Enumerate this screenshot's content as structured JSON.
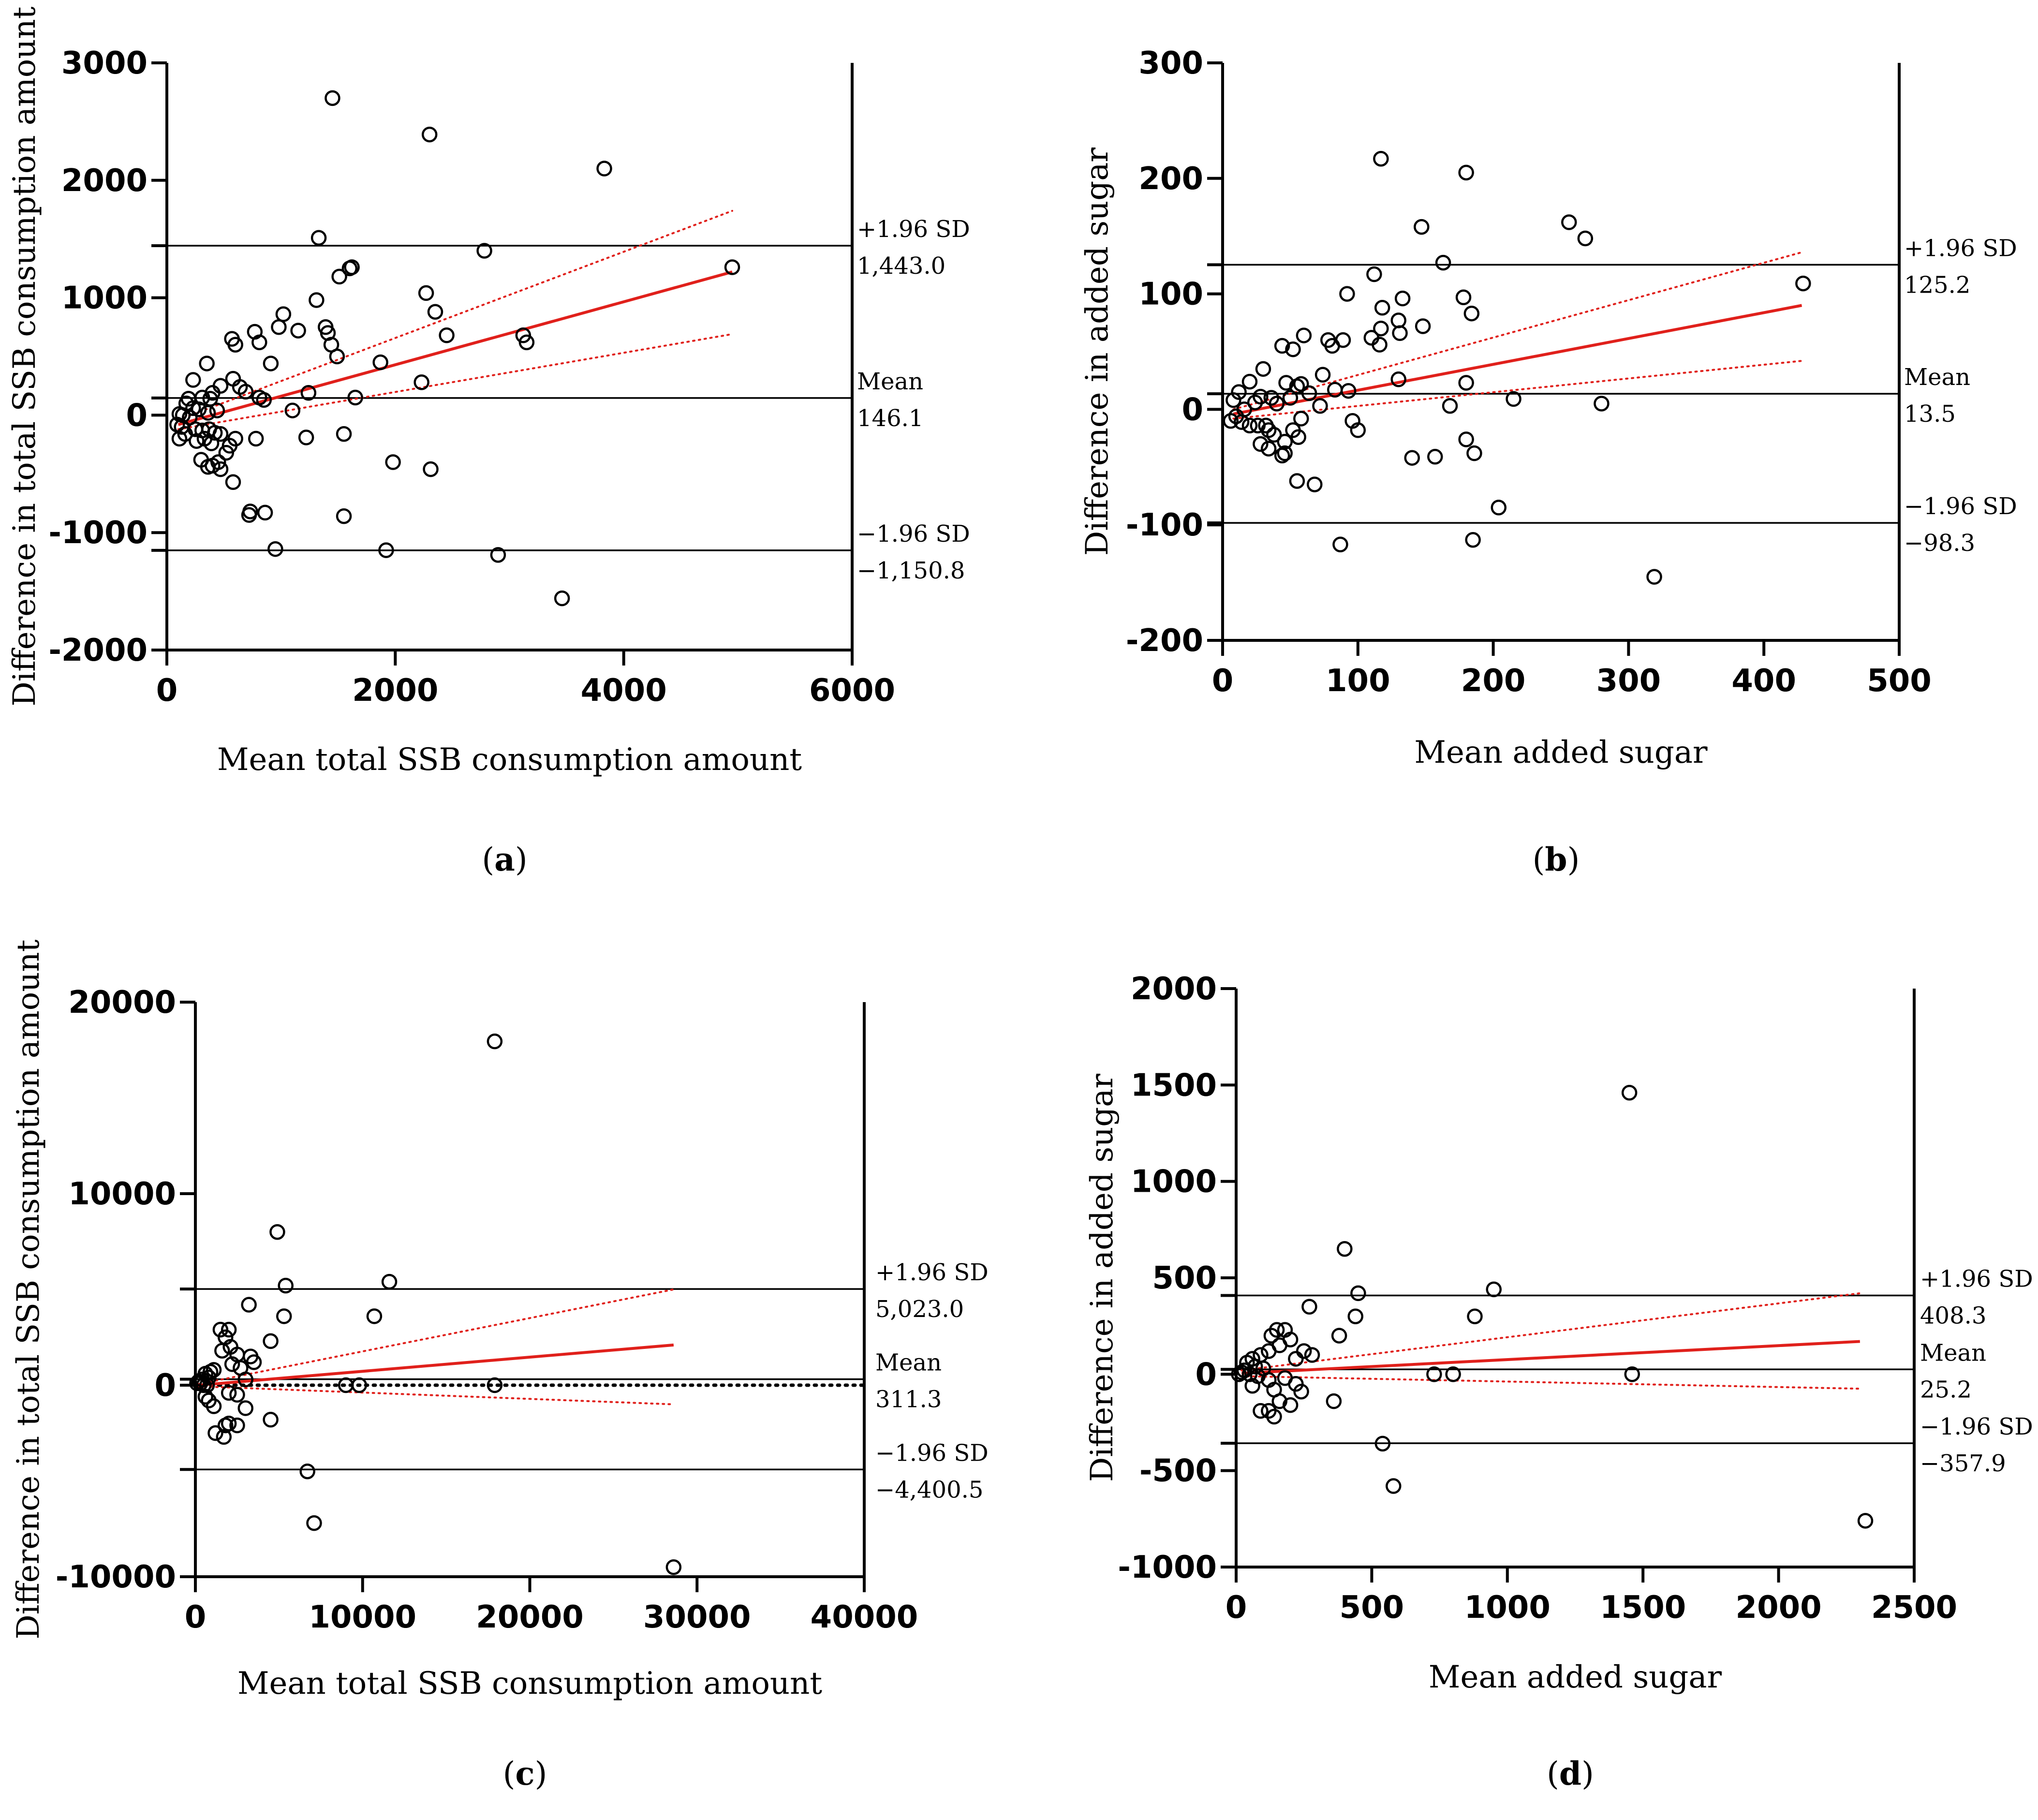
{
  "figure_caption_labels": [
    "(a)",
    "(b)",
    "(c)",
    "(d)"
  ],
  "chart_data": [
    {
      "type": "scatter",
      "panel": "a",
      "label_open": "(",
      "label_letter": "a",
      "label_close": ")",
      "xlabel": "Mean total SSB consumption amount",
      "ylabel": "Difference in total SSB consumption amount",
      "xlim": [
        0,
        6000
      ],
      "ylim": [
        -2000,
        3000
      ],
      "xticks": [
        0,
        2000,
        4000,
        6000
      ],
      "yticks": [
        -2000,
        -1000,
        0,
        1000,
        2000,
        3000
      ],
      "ytick_labels": [
        "-2000",
        "-1000",
        "0",
        "1000",
        "2000",
        "3000"
      ],
      "lines": {
        "upper": 1443.0,
        "mean": 146.1,
        "lower": -1150.8
      },
      "line_labels": {
        "upper_name": "+1.96 SD",
        "upper_value": "1,443.0",
        "mean_name": "Mean",
        "mean_value": "146.1",
        "lower_name": "−1.96 SD",
        "lower_value": "−1,150.8"
      },
      "regression": {
        "x0": 100,
        "y0": -80,
        "x1": 4950,
        "y1": 1220
      },
      "ci_upper": {
        "x0": 100,
        "y0": -40,
        "x1": 4950,
        "y1": 1740
      },
      "ci_lower": {
        "x0": 100,
        "y0": -120,
        "x1": 4950,
        "y1": 690
      },
      "points": [
        [
          1450,
          2700
        ],
        [
          2300,
          2390
        ],
        [
          3830,
          2100
        ],
        [
          1330,
          1510
        ],
        [
          2780,
          1400
        ],
        [
          1620,
          1260
        ],
        [
          1600,
          1250
        ],
        [
          4950,
          1260
        ],
        [
          1510,
          1180
        ],
        [
          2270,
          1040
        ],
        [
          1310,
          980
        ],
        [
          2350,
          880
        ],
        [
          1020,
          860
        ],
        [
          980,
          750
        ],
        [
          1390,
          750
        ],
        [
          1410,
          700
        ],
        [
          1150,
          720
        ],
        [
          770,
          710
        ],
        [
          2450,
          680
        ],
        [
          3120,
          680
        ],
        [
          3150,
          620
        ],
        [
          570,
          650
        ],
        [
          600,
          600
        ],
        [
          1440,
          600
        ],
        [
          810,
          620
        ],
        [
          1490,
          500
        ],
        [
          350,
          440
        ],
        [
          910,
          440
        ],
        [
          1870,
          450
        ],
        [
          2230,
          280
        ],
        [
          580,
          310
        ],
        [
          230,
          300
        ],
        [
          640,
          240
        ],
        [
          470,
          250
        ],
        [
          690,
          200
        ],
        [
          1240,
          190
        ],
        [
          400,
          190
        ],
        [
          1650,
          150
        ],
        [
          380,
          140
        ],
        [
          810,
          150
        ],
        [
          850,
          130
        ],
        [
          310,
          150
        ],
        [
          190,
          140
        ],
        [
          170,
          100
        ],
        [
          230,
          60
        ],
        [
          280,
          50
        ],
        [
          440,
          40
        ],
        [
          1100,
          40
        ],
        [
          360,
          20
        ],
        [
          110,
          10
        ],
        [
          140,
          0
        ],
        [
          200,
          -20
        ],
        [
          90,
          -80
        ],
        [
          130,
          -100
        ],
        [
          250,
          -120
        ],
        [
          310,
          -130
        ],
        [
          370,
          -120
        ],
        [
          420,
          -150
        ],
        [
          470,
          -160
        ],
        [
          600,
          -200
        ],
        [
          780,
          -200
        ],
        [
          1220,
          -190
        ],
        [
          1550,
          -160
        ],
        [
          110,
          -200
        ],
        [
          160,
          -160
        ],
        [
          330,
          -200
        ],
        [
          260,
          -220
        ],
        [
          390,
          -240
        ],
        [
          550,
          -260
        ],
        [
          520,
          -320
        ],
        [
          300,
          -380
        ],
        [
          450,
          -400
        ],
        [
          400,
          -430
        ],
        [
          360,
          -440
        ],
        [
          470,
          -460
        ],
        [
          1980,
          -400
        ],
        [
          2310,
          -460
        ],
        [
          580,
          -570
        ],
        [
          730,
          -820
        ],
        [
          720,
          -850
        ],
        [
          860,
          -830
        ],
        [
          1550,
          -860
        ],
        [
          950,
          -1140
        ],
        [
          1920,
          -1150
        ],
        [
          2900,
          -1190
        ],
        [
          3460,
          -1560
        ]
      ]
    },
    {
      "type": "scatter",
      "panel": "b",
      "label_open": "(",
      "label_letter": "b",
      "label_close": ")",
      "xlabel": "Mean added sugar",
      "ylabel": "Difference in added sugar",
      "xlim": [
        0,
        500
      ],
      "ylim": [
        -200,
        300
      ],
      "xticks": [
        0,
        100,
        200,
        300,
        400,
        500
      ],
      "yticks": [
        -200,
        -100,
        0,
        100,
        200,
        300
      ],
      "ytick_labels": [
        "-200",
        "-100",
        "0",
        "100",
        "200",
        "300"
      ],
      "lines": {
        "upper": 125.2,
        "mean": 13.5,
        "lower": -98.3
      },
      "line_labels": {
        "upper_name": "+1.96 SD",
        "upper_value": "125.2",
        "mean_name": "Mean",
        "mean_value": "13.5",
        "lower_name": "−1.96 SD",
        "lower_value": "−98.3"
      },
      "regression": {
        "x0": 8,
        "y0": -4,
        "x1": 428,
        "y1": 90
      },
      "ci_upper": {
        "x0": 8,
        "y0": 0,
        "x1": 428,
        "y1": 136
      },
      "ci_lower": {
        "x0": 8,
        "y0": -8,
        "x1": 428,
        "y1": 42
      },
      "points": [
        [
          117,
          217
        ],
        [
          180,
          205
        ],
        [
          147,
          158
        ],
        [
          256,
          162
        ],
        [
          268,
          148
        ],
        [
          163,
          127
        ],
        [
          112,
          117
        ],
        [
          429,
          109
        ],
        [
          92,
          100
        ],
        [
          133,
          96
        ],
        [
          178,
          97
        ],
        [
          118,
          88
        ],
        [
          184,
          83
        ],
        [
          117,
          70
        ],
        [
          130,
          77
        ],
        [
          148,
          72
        ],
        [
          116,
          56
        ],
        [
          60,
          64
        ],
        [
          131,
          66
        ],
        [
          78,
          60
        ],
        [
          81,
          55
        ],
        [
          89,
          60
        ],
        [
          44,
          55
        ],
        [
          52,
          52
        ],
        [
          110,
          62
        ],
        [
          30,
          35
        ],
        [
          74,
          30
        ],
        [
          130,
          26
        ],
        [
          180,
          23
        ],
        [
          47,
          23
        ],
        [
          55,
          20
        ],
        [
          83,
          17
        ],
        [
          93,
          16
        ],
        [
          58,
          22
        ],
        [
          20,
          24
        ],
        [
          12,
          15
        ],
        [
          8,
          8
        ],
        [
          24,
          6
        ],
        [
          28,
          11
        ],
        [
          36,
          10
        ],
        [
          40,
          5
        ],
        [
          50,
          10
        ],
        [
          168,
          3
        ],
        [
          215,
          9
        ],
        [
          280,
          5
        ],
        [
          64,
          14
        ],
        [
          72,
          3
        ],
        [
          16,
          0
        ],
        [
          10,
          -6
        ],
        [
          6,
          -10
        ],
        [
          14,
          -11
        ],
        [
          20,
          -14
        ],
        [
          26,
          -14
        ],
        [
          32,
          -14
        ],
        [
          34,
          -18
        ],
        [
          52,
          -18
        ],
        [
          58,
          -8
        ],
        [
          96,
          -10
        ],
        [
          100,
          -18
        ],
        [
          38,
          -22
        ],
        [
          56,
          -24
        ],
        [
          46,
          -28
        ],
        [
          28,
          -30
        ],
        [
          34,
          -34
        ],
        [
          46,
          -38
        ],
        [
          44,
          -40
        ],
        [
          180,
          -26
        ],
        [
          186,
          -38
        ],
        [
          140,
          -42
        ],
        [
          157,
          -41
        ],
        [
          55,
          -62
        ],
        [
          68,
          -65
        ],
        [
          204,
          -85
        ],
        [
          87,
          -117
        ],
        [
          185,
          -113
        ],
        [
          319,
          -145
        ]
      ]
    },
    {
      "type": "scatter",
      "panel": "c",
      "label_open": "(",
      "label_letter": "c",
      "label_close": ")",
      "xlabel": "Mean total SSB consumption amount",
      "ylabel": "Difference in total SSB consumption amount",
      "xlim": [
        0,
        40000
      ],
      "ylim": [
        -10000,
        20000
      ],
      "xticks": [
        0,
        10000,
        20000,
        30000,
        40000
      ],
      "yticks": [
        -10000,
        0,
        10000,
        20000
      ],
      "ytick_labels": [
        "-10000",
        "0",
        "10000",
        "20000"
      ],
      "lines": {
        "upper": 5023.0,
        "mean": 311.3,
        "lower": -4400.5
      },
      "line_labels": {
        "upper_name": "+1.96 SD",
        "upper_value": "5,023.0",
        "mean_name": "Mean",
        "mean_value": "311.3",
        "lower_name": "−1.96 SD",
        "lower_value": "−4,400.5"
      },
      "zero_dotted": true,
      "regression": {
        "x0": 200,
        "y0": 0,
        "x1": 28600,
        "y1": 2100
      },
      "ci_upper": {
        "x0": 200,
        "y0": 60,
        "x1": 28600,
        "y1": 5000
      },
      "ci_lower": {
        "x0": 200,
        "y0": -60,
        "x1": 28600,
        "y1": -1000
      },
      "points": [
        [
          17900,
          17950
        ],
        [
          4900,
          8000
        ],
        [
          11600,
          5400
        ],
        [
          5400,
          5200
        ],
        [
          10700,
          3600
        ],
        [
          5300,
          3600
        ],
        [
          3200,
          4200
        ],
        [
          4500,
          2300
        ],
        [
          1500,
          2900
        ],
        [
          2000,
          2900
        ],
        [
          1800,
          2500
        ],
        [
          2100,
          2000
        ],
        [
          1600,
          1800
        ],
        [
          2500,
          1600
        ],
        [
          3300,
          1500
        ],
        [
          3500,
          1200
        ],
        [
          2200,
          1100
        ],
        [
          2700,
          900
        ],
        [
          1100,
          800
        ],
        [
          900,
          700
        ],
        [
          600,
          600
        ],
        [
          800,
          400
        ],
        [
          3000,
          300
        ],
        [
          400,
          300
        ],
        [
          200,
          200
        ],
        [
          100,
          100
        ],
        [
          300,
          100
        ],
        [
          500,
          0
        ],
        [
          700,
          0
        ],
        [
          9000,
          0
        ],
        [
          9800,
          0
        ],
        [
          17900,
          0
        ],
        [
          2000,
          -400
        ],
        [
          600,
          -600
        ],
        [
          800,
          -800
        ],
        [
          2500,
          -500
        ],
        [
          1100,
          -1100
        ],
        [
          3000,
          -1200
        ],
        [
          4500,
          -1800
        ],
        [
          2000,
          -2000
        ],
        [
          1800,
          -2100
        ],
        [
          2500,
          -2100
        ],
        [
          1200,
          -2500
        ],
        [
          1700,
          -2700
        ],
        [
          6700,
          -4500
        ],
        [
          7100,
          -7200
        ],
        [
          28600,
          -9500
        ]
      ]
    },
    {
      "type": "scatter",
      "panel": "d",
      "label_open": "(",
      "label_letter": "d",
      "label_close": ")",
      "xlabel": "Mean added sugar",
      "ylabel": "Difference in added sugar",
      "xlim": [
        0,
        2500
      ],
      "ylim": [
        -1000,
        2000
      ],
      "xticks": [
        0,
        500,
        1000,
        1500,
        2000,
        2500
      ],
      "yticks": [
        -1000,
        -500,
        0,
        500,
        1000,
        1500,
        2000
      ],
      "ytick_labels": [
        "-1000",
        "-500",
        "0",
        "500",
        "1000",
        "1500",
        "2000"
      ],
      "lines": {
        "upper": 408.3,
        "mean": 25.2,
        "lower": -357.9
      },
      "line_labels": {
        "upper_name": "+1.96 SD",
        "upper_value": "408.3",
        "mean_name": "Mean",
        "mean_value": "25.2",
        "lower_name": "−1.96 SD",
        "lower_value": "−357.9"
      },
      "regression": {
        "x0": 20,
        "y0": 5,
        "x1": 2300,
        "y1": 170
      },
      "ci_upper": {
        "x0": 20,
        "y0": 20,
        "x1": 2300,
        "y1": 420
      },
      "ci_lower": {
        "x0": 20,
        "y0": -10,
        "x1": 2300,
        "y1": -75
      },
      "points": [
        [
          1450,
          1460
        ],
        [
          400,
          650
        ],
        [
          450,
          420
        ],
        [
          950,
          440
        ],
        [
          880,
          300
        ],
        [
          440,
          300
        ],
        [
          270,
          350
        ],
        [
          380,
          200
        ],
        [
          150,
          230
        ],
        [
          180,
          230
        ],
        [
          130,
          200
        ],
        [
          200,
          180
        ],
        [
          160,
          150
        ],
        [
          280,
          100
        ],
        [
          250,
          120
        ],
        [
          120,
          120
        ],
        [
          90,
          100
        ],
        [
          60,
          80
        ],
        [
          220,
          80
        ],
        [
          40,
          60
        ],
        [
          70,
          40
        ],
        [
          100,
          30
        ],
        [
          30,
          20
        ],
        [
          20,
          10
        ],
        [
          10,
          0
        ],
        [
          50,
          0
        ],
        [
          80,
          -10
        ],
        [
          730,
          0
        ],
        [
          800,
          0
        ],
        [
          1460,
          0
        ],
        [
          180,
          -20
        ],
        [
          120,
          -30
        ],
        [
          220,
          -50
        ],
        [
          60,
          -60
        ],
        [
          140,
          -80
        ],
        [
          240,
          -90
        ],
        [
          160,
          -140
        ],
        [
          120,
          -190
        ],
        [
          200,
          -160
        ],
        [
          140,
          -220
        ],
        [
          360,
          -140
        ],
        [
          90,
          -190
        ],
        [
          540,
          -360
        ],
        [
          580,
          -580
        ],
        [
          2320,
          -760
        ]
      ]
    }
  ]
}
